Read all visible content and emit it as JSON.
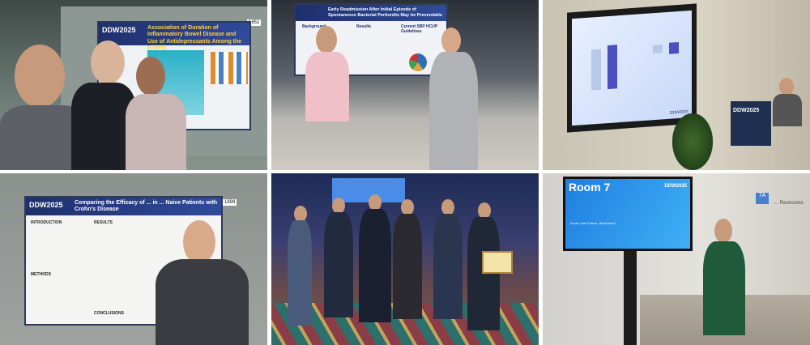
{
  "photos": [
    {
      "poster_logo": "DDW2025",
      "poster_title": "Association of Duration of Inflammatory Bowel Disease and Use of Antidepressants Among the Elderly",
      "board_number": "1852"
    },
    {
      "poster_title": "Early Readmission After Initial Episode of Spontaneous Bacterial Peritonitis May be Preventable",
      "sections": [
        "Background",
        "Results",
        "Current SBP HCUP Guidelines"
      ]
    },
    {
      "slide_logo": "DDW2025"
    },
    {
      "poster_logo": "DDW2025",
      "poster_title": "Comparing the Efficacy of ... in ... Naive Patients with Crohn's Disease",
      "board_number": "1899",
      "sections": [
        "INTRODUCTION",
        "RESULTS",
        "METHODS",
        "CONCLUSIONS"
      ]
    },
    {},
    {
      "screen_title": "Room 7",
      "screen_logo": "DDW2025",
      "session_title": "Acute Liver Failure, What Now?",
      "room_sign": "7A",
      "direction_sign": "← Restrooms"
    }
  ],
  "colors": {
    "ddw_blue": "#1f2f6b",
    "ddw_yellow": "#ffd23c",
    "screen_blue": "#2d8fe6"
  }
}
